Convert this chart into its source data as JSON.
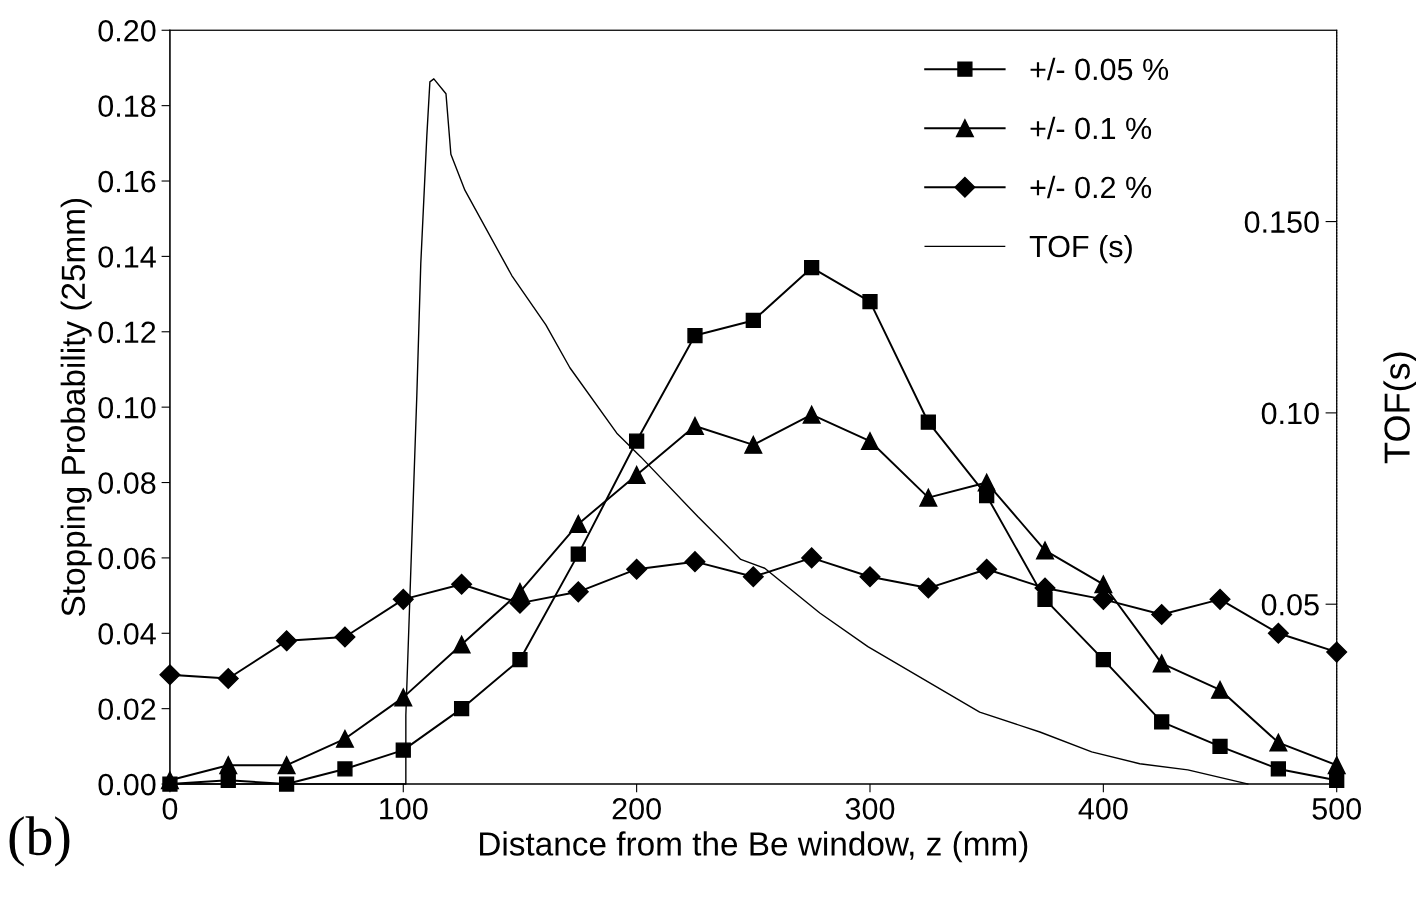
{
  "chart_data": {
    "type": "line",
    "xlabel": "Distance from the Be window, z (mm)",
    "ylabel": "Stopping Probability (25mm)",
    "y2label": "TOF(s)",
    "annotations": [
      "(b)"
    ],
    "xlim": [
      0,
      500
    ],
    "xticks": [
      0,
      100,
      200,
      300,
      400,
      500
    ],
    "ylim": [
      0,
      0.2
    ],
    "yticks": [
      {
        "value": 0,
        "label": "0.00"
      },
      {
        "value": 0.02,
        "label": "0.02"
      },
      {
        "value": 0.04,
        "label": "0.04"
      },
      {
        "value": 0.06,
        "label": "0.06"
      },
      {
        "value": 0.08,
        "label": "0.08"
      },
      {
        "value": 0.1,
        "label": "0.10"
      },
      {
        "value": 0.12,
        "label": "0.12"
      },
      {
        "value": 0.14,
        "label": "0.14"
      },
      {
        "value": 0.16,
        "label": "0.16"
      },
      {
        "value": 0.18,
        "label": "0.18"
      },
      {
        "value": 0.2,
        "label": "0.20"
      }
    ],
    "y2lim": [
      0.003,
      0.2
    ],
    "y2ticks": [
      {
        "value": 0.05,
        "label": "0.05"
      },
      {
        "value": 0.1,
        "label": "0.10"
      },
      {
        "value": 0.15,
        "label": "0.150"
      }
    ],
    "grid": false,
    "legend": "top right",
    "x": [
      0,
      25,
      50,
      75,
      100,
      125,
      150,
      175,
      200,
      225,
      250,
      275,
      300,
      325,
      350,
      375,
      400,
      425,
      450,
      475,
      500
    ],
    "series": [
      {
        "name": "+/- 0.05 %",
        "color": "#000000",
        "marker": "square",
        "values": [
          0.0,
          0.001,
          0.0,
          0.004,
          0.009,
          0.02,
          0.033,
          0.061,
          0.091,
          0.119,
          0.123,
          0.137,
          0.128,
          0.096,
          0.0765,
          0.049,
          0.033,
          0.0165,
          0.01,
          0.004,
          0.001
        ]
      },
      {
        "name": "+/- 0.1 %",
        "color": "#000000",
        "marker": "triangle",
        "values": [
          0.001,
          0.005,
          0.005,
          0.012,
          0.023,
          0.037,
          0.051,
          0.069,
          0.082,
          0.095,
          0.09,
          0.098,
          0.091,
          0.076,
          0.08,
          0.062,
          0.053,
          0.032,
          0.025,
          0.011,
          0.005
        ]
      },
      {
        "name": "+/- 0.2 %",
        "color": "#000000",
        "marker": "diamond",
        "values": [
          0.029,
          0.028,
          0.038,
          0.039,
          0.049,
          0.053,
          0.048,
          0.051,
          0.057,
          0.059,
          0.055,
          0.06,
          0.055,
          0.052,
          0.057,
          0.052,
          0.049,
          0.045,
          0.049,
          0.04,
          0.035
        ]
      },
      {
        "name": "TOF (s)",
        "color": "#000000",
        "marker": "none",
        "axis": "y2",
        "x": [
          0,
          101.1,
          101.1,
          105.8,
          107.5,
          110.1,
          111.4,
          113.1,
          118.3,
          120.4,
          126.4,
          146.5,
          161.1,
          171.4,
          191.5,
          201.8,
          226.2,
          244.6,
          254.9,
          278.5,
          299.1,
          347.0,
          372.8,
          395.0,
          415.6,
          436.2,
          461.9
        ],
        "values": [
          0.003,
          0.003,
          0.021,
          0.1045,
          0.139,
          0.1725,
          0.1865,
          0.1873,
          0.1834,
          0.1676,
          0.1582,
          0.1359,
          0.123,
          0.1118,
          0.0947,
          0.0885,
          0.0729,
          0.0617,
          0.0594,
          0.0477,
          0.0389,
          0.0218,
          0.0166,
          0.0114,
          0.0083,
          0.0067,
          0.003
        ]
      }
    ]
  }
}
